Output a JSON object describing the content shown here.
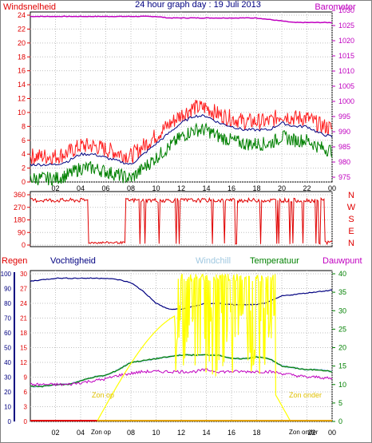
{
  "header": {
    "left_title": "Windsnelheid",
    "center_title": "24 hour graph day : 19 Juli 2013",
    "right_title": "Barometer"
  },
  "colors": {
    "wind": "#e00000",
    "gust": "#ff2020",
    "wind_avg": "#000080",
    "wind_min": "#008000",
    "baro": "#c000c0",
    "dir": "#e00000",
    "hum": "#000080",
    "rain": "#e00000",
    "chill": "#a0c8e0",
    "temp": "#008000",
    "dew": "#c000c0",
    "solar": "#ffff00",
    "sun": "#e0c000",
    "frame": "#000000",
    "grid": "#c0c0c0"
  },
  "x_ticks": [
    "02",
    "04",
    "06",
    "08",
    "10",
    "12",
    "14",
    "16",
    "18",
    "20",
    "22",
    "00"
  ],
  "wind_chart": {
    "left_axis": [
      "0",
      "2",
      "4",
      "6",
      "8",
      "10",
      "12",
      "14",
      "16",
      "18",
      "20",
      "22",
      "24"
    ],
    "right_axis": [
      "975",
      "980",
      "985",
      "990",
      "995",
      "1000",
      "1005",
      "1010",
      "1015",
      "1020",
      "1025",
      "1030"
    ]
  },
  "dir_chart": {
    "left_axis": [
      "0",
      "90",
      "180",
      "270",
      "360"
    ],
    "compass": [
      "N",
      "W",
      "S",
      "E",
      "N"
    ]
  },
  "bottom_labels": {
    "rain": "Regen",
    "humidity": "Vochtigheid",
    "windchill": "Windchill",
    "temperature": "Temperatuur",
    "dewpoint": "Dauwpunt",
    "sunrise": "Zon op",
    "sunset": "Zon onder"
  },
  "bottom_chart": {
    "hum_axis": [
      "0",
      "10",
      "20",
      "30",
      "40",
      "50",
      "60",
      "70",
      "80",
      "90",
      "100"
    ],
    "rain_axis": [
      "0",
      "3",
      "6",
      "9",
      "12",
      "15",
      "18",
      "21",
      "24",
      "27",
      "30"
    ],
    "temp_axis": [
      "0",
      "5",
      "10",
      "15",
      "20",
      "25",
      "30",
      "35",
      "40"
    ]
  },
  "chart_data": [
    {
      "type": "line",
      "title": "24 hour graph day : 19 Juli 2013",
      "x": [
        0,
        1,
        2,
        3,
        4,
        5,
        6,
        7,
        8,
        9,
        10,
        11,
        12,
        13,
        14,
        15,
        16,
        17,
        18,
        19,
        20,
        21,
        22,
        23,
        24
      ],
      "series": [
        {
          "name": "Windsnelheid",
          "values": [
            2.5,
            2.5,
            2.5,
            3,
            4,
            4,
            3.5,
            3,
            2.5,
            4,
            5.5,
            7,
            8.5,
            9.5,
            9.5,
            8.5,
            8,
            7.5,
            7.5,
            7.5,
            8.5,
            8,
            8,
            7,
            6.5
          ]
        },
        {
          "name": "Barometer",
          "values": [
            1028,
            1028,
            1028,
            1028,
            1028,
            1028,
            1028,
            1028,
            1028,
            1028,
            1028,
            1027.5,
            1027.5,
            1027.5,
            1027.5,
            1027.5,
            1027.5,
            1027.5,
            1027.5,
            1027,
            1026.5,
            1026,
            1026,
            1026,
            1026
          ]
        }
      ],
      "ylim": [
        0,
        24
      ],
      "y2lim": [
        975,
        1030
      ]
    },
    {
      "type": "scatter",
      "x": [
        0,
        2,
        4,
        4.5,
        6,
        7,
        8,
        10,
        12,
        14,
        16,
        18,
        20,
        22,
        24
      ],
      "values": [
        330,
        330,
        330,
        10,
        10,
        20,
        330,
        330,
        330,
        330,
        330,
        330,
        330,
        330,
        20
      ],
      "ylim": [
        0,
        360
      ]
    },
    {
      "type": "line",
      "x": [
        0,
        1,
        2,
        3,
        4,
        5,
        6,
        7,
        8,
        9,
        10,
        11,
        12,
        13,
        14,
        15,
        16,
        17,
        18,
        19,
        20,
        21,
        22,
        23,
        24
      ],
      "series": [
        {
          "name": "Vochtigheid",
          "values": [
            95,
            96,
            97,
            97,
            97,
            97,
            97,
            96,
            94,
            88,
            80,
            76,
            76,
            78,
            80,
            80,
            79,
            79,
            79,
            81,
            85,
            86,
            87,
            88,
            89
          ]
        },
        {
          "name": "Temperatuur",
          "values": [
            9.5,
            9.5,
            10,
            10,
            11,
            12,
            12.5,
            14,
            16,
            16.5,
            17,
            17.5,
            18,
            18,
            18,
            18,
            17,
            17,
            17.5,
            17,
            15,
            14.5,
            14,
            14,
            13.5
          ]
        },
        {
          "name": "Dauwpunt",
          "values": [
            10,
            10,
            10,
            10,
            10.5,
            11,
            11.5,
            12.5,
            13,
            13.5,
            13.5,
            13.5,
            13.5,
            13.5,
            14,
            13.5,
            13.5,
            13.5,
            13.5,
            13.5,
            13,
            12.5,
            12,
            12,
            11.5
          ]
        },
        {
          "name": "Windchill",
          "values": [
            9.5,
            9.5,
            10,
            10,
            11,
            12,
            12.5,
            14,
            16,
            16.5,
            17,
            17.5,
            18,
            18,
            18,
            18,
            17,
            17,
            17.5,
            17,
            15,
            14.5,
            14,
            14,
            13.5
          ]
        },
        {
          "name": "Regen",
          "values": [
            0,
            0,
            0,
            0,
            0,
            0,
            0,
            0,
            0,
            0,
            0,
            0,
            0,
            0,
            0,
            0,
            0,
            0,
            0,
            0,
            0,
            0,
            0,
            0,
            0
          ]
        }
      ],
      "ylim": [
        0,
        100
      ],
      "y2lim": [
        0,
        40
      ]
    }
  ]
}
